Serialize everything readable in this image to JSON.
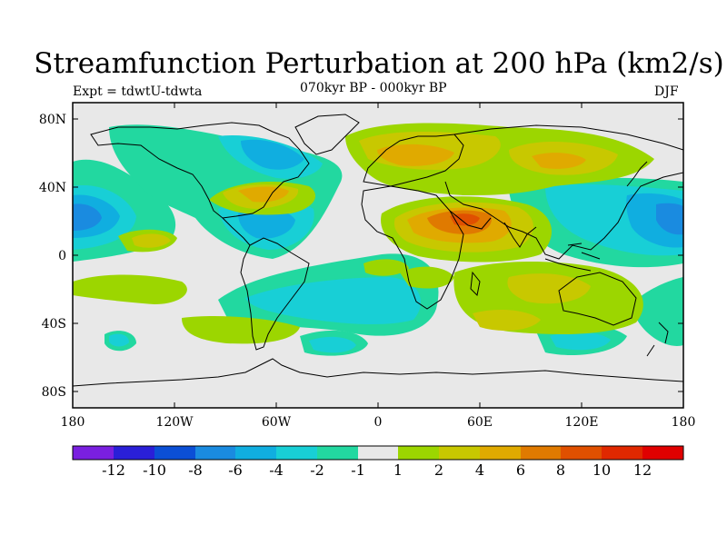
{
  "title": "Streamfunction Perturbation at 200 hPa (km2/s)",
  "subtitle": "070kyr BP - 000kyr BP",
  "left_label": "Expt = tdwtU-tdwta",
  "right_label": "DJF",
  "chart_data": {
    "type": "heatmap",
    "projection": "cylindrical equidistant",
    "variable": "Streamfunction Perturbation at 200 hPa",
    "units": "km2/s",
    "season": "DJF",
    "lon_range": [
      -180,
      180
    ],
    "lat_range": [
      -90,
      90
    ],
    "x_ticks": [
      "180",
      "120W",
      "60W",
      "0",
      "60E",
      "120E",
      "180"
    ],
    "y_ticks": [
      "80N",
      "40N",
      "0",
      "40S",
      "80S"
    ],
    "levels": [
      "-12",
      "-10",
      "-8",
      "-6",
      "-4",
      "-2",
      "-1",
      "1",
      "2",
      "4",
      "6",
      "8",
      "10",
      "12"
    ],
    "colors": [
      "#7a1fe0",
      "#2a1fd8",
      "#0b4fd6",
      "#1a8be0",
      "#10aee0",
      "#18cfd6",
      "#22d8a0",
      "#e8e8e8",
      "#9cd600",
      "#c8c800",
      "#e0aa00",
      "#e07a00",
      "#e05000",
      "#e02800",
      "#e00000"
    ],
    "features": [
      {
        "name": "strong negative centre, central North Pacific",
        "lon": -175,
        "lat": 22,
        "value": -7
      },
      {
        "name": "strong negative centre, western North Pacific",
        "lon": 165,
        "lat": 20,
        "value": -7
      },
      {
        "name": "negative centre, North America / Labrador",
        "lon": -75,
        "lat": 55,
        "value": -5
      },
      {
        "name": "negative centre, subtropical North Atlantic",
        "lon": -55,
        "lat": 18,
        "value": -5
      },
      {
        "name": "positive centre, Middle East / Arabia",
        "lon": 55,
        "lat": 22,
        "value": 5
      },
      {
        "name": "positive centre, northern Eurasia",
        "lon": 15,
        "lat": 60,
        "value": 4
      },
      {
        "name": "positive centre, central Siberia",
        "lon": 110,
        "lat": 55,
        "value": 4
      },
      {
        "name": "positive centre, southeastern USA",
        "lon": -70,
        "lat": 35,
        "value": 4
      },
      {
        "name": "negative belt, South Atlantic / Africa",
        "lon": 0,
        "lat": -30,
        "value": -3
      },
      {
        "name": "positive patch, South Indian Ocean",
        "lon": 60,
        "lat": -35,
        "value": 2
      },
      {
        "name": "positive patch, Australia",
        "lon": 130,
        "lat": -25,
        "value": 2
      }
    ]
  }
}
